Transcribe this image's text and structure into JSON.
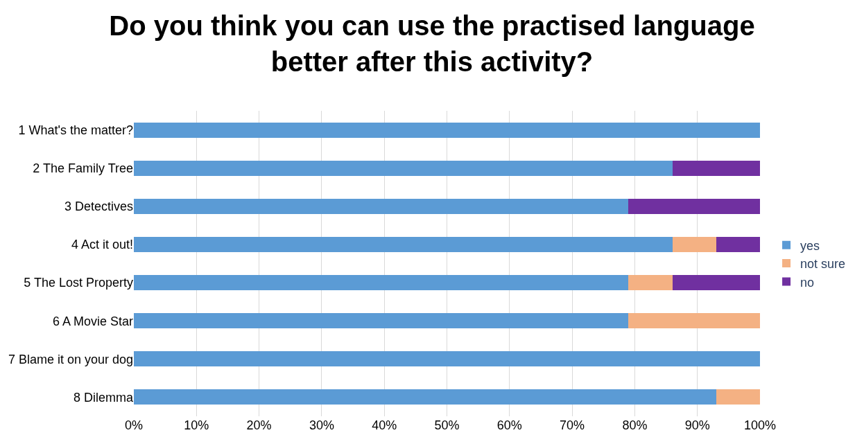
{
  "chart_data": {
    "type": "bar",
    "orientation": "horizontal",
    "stacked": true,
    "title": "Do you think you can use the practised language better after this activity?",
    "categories": [
      "1 What's the matter?",
      "2 The Family Tree",
      "3 Detectives",
      "4 Act it out!",
      "5 The Lost Property",
      "6 A Movie Star",
      "7 Blame it on your dog",
      "8 Dilemma"
    ],
    "series": [
      {
        "name": "yes",
        "color": "#5b9bd5",
        "values": [
          100,
          86,
          79,
          86,
          79,
          79,
          100,
          93
        ]
      },
      {
        "name": "not sure",
        "color": "#f4b183",
        "values": [
          0,
          0,
          0,
          7,
          7,
          21,
          0,
          7
        ]
      },
      {
        "name": "no",
        "color": "#7030a0",
        "values": [
          0,
          14,
          21,
          7,
          14,
          0,
          0,
          0
        ]
      }
    ],
    "xlim": [
      0,
      100
    ],
    "xticks": [
      {
        "value": 0,
        "label": "0%"
      },
      {
        "value": 10,
        "label": "10%"
      },
      {
        "value": 20,
        "label": "20%"
      },
      {
        "value": 30,
        "label": "30%"
      },
      {
        "value": 40,
        "label": "40%"
      },
      {
        "value": 50,
        "label": "50%"
      },
      {
        "value": 60,
        "label": "60%"
      },
      {
        "value": 70,
        "label": "70%"
      },
      {
        "value": 80,
        "label": "80%"
      },
      {
        "value": 90,
        "label": "90%"
      },
      {
        "value": 100,
        "label": "100%"
      }
    ],
    "grid": "x",
    "legend": "right"
  }
}
